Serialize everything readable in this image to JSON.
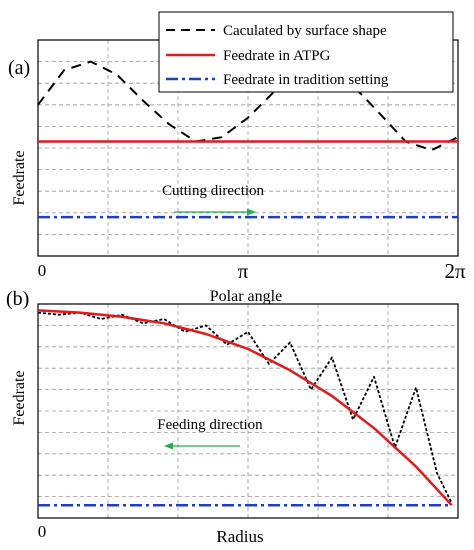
{
  "chart_data": [
    {
      "panel": "(a)",
      "type": "line",
      "xlabel": "Polar angle",
      "ylabel": "Feedrate",
      "x_ticks": [
        "0",
        "π",
        "2π"
      ],
      "xlim": [
        0,
        6.2832
      ],
      "ylim": [
        0,
        1
      ],
      "grid": true,
      "legend": {
        "placement": "top-right",
        "entries": [
          {
            "label": "Caculated by surface shape",
            "color": "#000000",
            "style": "dashed"
          },
          {
            "label": "Feedrate in ATPG",
            "color": "#e31a1c",
            "style": "solid"
          },
          {
            "label": "Feedrate in tradition setting",
            "color": "#1f3fbf",
            "style": "dashdot"
          }
        ]
      },
      "annotation": {
        "text": "Cutting direction",
        "arrow": "right",
        "color": "#22b14c"
      },
      "series": [
        {
          "name": "Caculated by surface shape",
          "color": "#000000",
          "style": "dashed",
          "x": [
            0,
            0.39,
            0.79,
            1.18,
            1.57,
            1.96,
            2.36,
            2.75,
            3.14,
            3.53,
            3.93,
            4.32,
            4.71,
            5.11,
            5.5,
            5.89,
            6.28
          ],
          "y": [
            0.7,
            0.86,
            0.9,
            0.84,
            0.72,
            0.61,
            0.53,
            0.55,
            0.64,
            0.76,
            0.83,
            0.86,
            0.79,
            0.66,
            0.53,
            0.49,
            0.55
          ]
        },
        {
          "name": "Feedrate in ATPG",
          "color": "#e31a1c",
          "style": "solid",
          "x": [
            0,
            6.2832
          ],
          "y": [
            0.53,
            0.53
          ]
        },
        {
          "name": "Feedrate in tradition setting",
          "color": "#1f3fbf",
          "style": "dashdot",
          "x": [
            0,
            6.2832
          ],
          "y": [
            0.18,
            0.18
          ]
        }
      ]
    },
    {
      "panel": "(b)",
      "type": "line",
      "xlabel": "Radius",
      "ylabel": "Feedrate",
      "x_ticks": [
        "0"
      ],
      "xlim": [
        0,
        1
      ],
      "ylim": [
        0,
        1
      ],
      "grid": true,
      "annotation": {
        "text": "Feeding direction",
        "arrow": "left",
        "color": "#22b14c"
      },
      "series": [
        {
          "name": "Caculated by surface shape",
          "color": "#000000",
          "style": "dotted",
          "x": [
            0,
            0.05,
            0.1,
            0.15,
            0.2,
            0.25,
            0.3,
            0.35,
            0.4,
            0.45,
            0.5,
            0.55,
            0.6,
            0.65,
            0.7,
            0.75,
            0.8,
            0.85,
            0.9,
            0.95,
            0.985
          ],
          "y": [
            0.96,
            0.95,
            0.96,
            0.93,
            0.95,
            0.91,
            0.93,
            0.87,
            0.9,
            0.81,
            0.87,
            0.72,
            0.82,
            0.6,
            0.75,
            0.46,
            0.66,
            0.33,
            0.61,
            0.21,
            0.07
          ]
        },
        {
          "name": "Feedrate in ATPG",
          "color": "#e31a1c",
          "style": "solid",
          "x": [
            0,
            0.1,
            0.2,
            0.3,
            0.4,
            0.5,
            0.6,
            0.7,
            0.8,
            0.9,
            0.985
          ],
          "y": [
            0.97,
            0.96,
            0.94,
            0.91,
            0.86,
            0.79,
            0.69,
            0.57,
            0.42,
            0.24,
            0.06
          ]
        },
        {
          "name": "Feedrate in tradition setting",
          "color": "#1f3fbf",
          "style": "dashdot",
          "x": [
            0,
            0.985
          ],
          "y": [
            0.06,
            0.06
          ]
        }
      ]
    }
  ]
}
